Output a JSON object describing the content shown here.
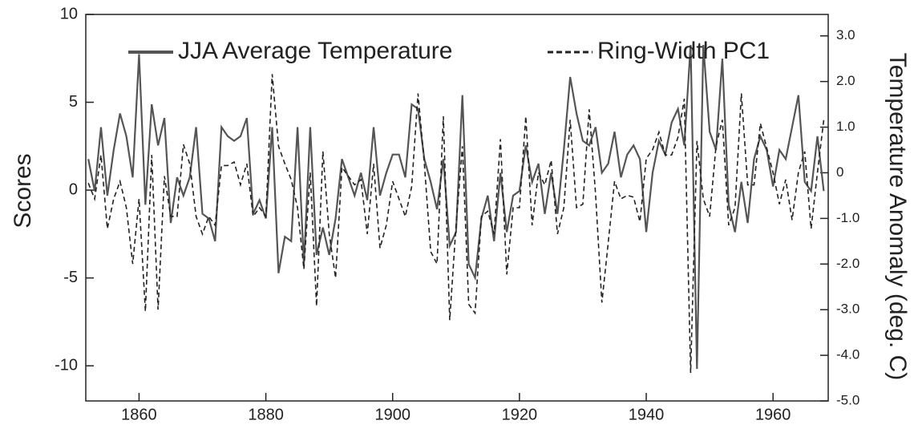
{
  "chart_data": {
    "type": "line",
    "y_label": "Scores",
    "y2_label": "Temperature Anomaly (deg. C)",
    "x": [
      1852,
      1853,
      1854,
      1855,
      1856,
      1857,
      1858,
      1859,
      1860,
      1861,
      1862,
      1863,
      1864,
      1865,
      1866,
      1867,
      1868,
      1869,
      1870,
      1871,
      1872,
      1873,
      1874,
      1875,
      1876,
      1877,
      1878,
      1879,
      1880,
      1881,
      1882,
      1883,
      1884,
      1885,
      1886,
      1887,
      1888,
      1889,
      1890,
      1891,
      1892,
      1893,
      1894,
      1895,
      1896,
      1897,
      1898,
      1899,
      1900,
      1901,
      1902,
      1903,
      1904,
      1905,
      1906,
      1907,
      1908,
      1909,
      1910,
      1911,
      1912,
      1913,
      1914,
      1915,
      1916,
      1917,
      1918,
      1919,
      1920,
      1921,
      1922,
      1923,
      1924,
      1925,
      1926,
      1927,
      1928,
      1929,
      1930,
      1931,
      1932,
      1933,
      1934,
      1935,
      1936,
      1937,
      1938,
      1939,
      1940,
      1941,
      1942,
      1943,
      1944,
      1945,
      1946,
      1947,
      1948,
      1949,
      1950,
      1951,
      1952,
      1953,
      1954,
      1955,
      1956,
      1957,
      1958,
      1959,
      1960,
      1961,
      1962,
      1963,
      1964,
      1965,
      1966,
      1967,
      1968
    ],
    "series": [
      {
        "name": "JJA Average Temperature",
        "color": "#555555",
        "dash": false,
        "axis": "y2",
        "values": [
          0.3,
          -0.4,
          1.0,
          -0.5,
          0.5,
          1.3,
          0.8,
          -0.1,
          2.6,
          -0.7,
          1.5,
          0.6,
          1.2,
          -1.1,
          -0.1,
          -0.5,
          -0.1,
          1.0,
          -0.9,
          -1.0,
          -1.5,
          1.0,
          0.8,
          0.7,
          0.8,
          1.2,
          -0.9,
          -0.6,
          -1.0,
          1.0,
          -2.2,
          -1.4,
          -1.5,
          1.0,
          -2.0,
          1.0,
          -1.8,
          -1.2,
          -1.8,
          -1.0,
          0.3,
          -0.1,
          -0.5,
          0.0,
          -0.6,
          1.0,
          -0.5,
          0.0,
          0.4,
          0.4,
          -0.1,
          1.5,
          1.4,
          0.3,
          -0.2,
          -0.8,
          0.3,
          -1.6,
          -1.3,
          1.7,
          -2.0,
          -2.3,
          -1.0,
          -0.5,
          -1.5,
          0.0,
          -1.3,
          -0.5,
          -0.4,
          0.6,
          -0.2,
          0.2,
          -0.9,
          0.0,
          -0.9,
          0.5,
          2.1,
          1.3,
          0.7,
          0.6,
          1.0,
          0.0,
          0.2,
          0.9,
          -0.1,
          0.4,
          0.6,
          0.3,
          -1.3,
          0.0,
          0.7,
          0.4,
          1.1,
          1.4,
          0.6,
          2.8,
          -4.3,
          2.8,
          0.9,
          0.5,
          2.5,
          -0.7,
          -1.3,
          -0.2,
          -1.1,
          0.3,
          0.8,
          0.5,
          -0.3,
          0.5,
          0.3,
          1.0,
          1.7,
          -0.2,
          -0.4,
          0.8,
          -0.4
        ]
      },
      {
        "name": "Ring-Width PC1",
        "color": "#222222",
        "dash": true,
        "values": [
          0.4,
          -0.5,
          2.0,
          -2.2,
          -0.5,
          0.5,
          -1.0,
          -4.2,
          -0.5,
          -6.9,
          2.0,
          -6.8,
          0.8,
          -1.5,
          -1.5,
          2.6,
          1.5,
          -1.5,
          -2.5,
          -1.5,
          -2.0,
          1.4,
          1.4,
          1.6,
          0.3,
          1.5,
          -1.5,
          -1.0,
          -1.5,
          6.6,
          2.5,
          1.5,
          0.6,
          -1.0,
          -4.5,
          1.0,
          -6.6,
          2.2,
          -2.5,
          -5.0,
          1.3,
          0.8,
          0.3,
          0.6,
          -2.5,
          1.5,
          -3.3,
          -2.0,
          0.5,
          -0.5,
          -1.5,
          0.2,
          5.5,
          1.5,
          -3.5,
          -4.2,
          4.2,
          -7.4,
          -2.0,
          2.5,
          -6.5,
          -7.0,
          -1.5,
          -1.2,
          -2.5,
          2.9,
          -4.8,
          -1.0,
          -1.0,
          4.2,
          -2.0,
          1.0,
          0.3,
          1.7,
          -2.5,
          -1.0,
          4.0,
          -1.0,
          -0.8,
          4.6,
          -0.2,
          -6.4,
          -3.0,
          0.5,
          -0.5,
          -0.3,
          -0.4,
          -1.8,
          1.8,
          2.3,
          3.3,
          2.0,
          2.0,
          3.0,
          5.2,
          -10.4,
          2.8,
          -0.5,
          -1.5,
          2.5,
          4.0,
          -2.0,
          -1.0,
          5.5,
          0.3,
          0.3,
          3.8,
          2.4,
          1.0,
          -0.8,
          0.6,
          -1.7,
          1.0,
          2.2,
          -2.2,
          1.0,
          4.0
        ]
      }
    ],
    "xlim": [
      1851.6,
      1968.7
    ],
    "xticks": [
      1860,
      1880,
      1900,
      1920,
      1940,
      1960
    ],
    "ylim": [
      -12,
      10
    ],
    "yticks": [
      -10,
      -5,
      0,
      5,
      10
    ],
    "y2lim": [
      -5,
      3.47
    ],
    "y2ticks": [
      {
        "value": -5,
        "label": "-5.0"
      },
      {
        "value": -4,
        "label": "-4.0"
      },
      {
        "value": -3,
        "label": "-3.0"
      },
      {
        "value": -2,
        "label": "-2.0"
      },
      {
        "value": -1,
        "label": "-1.0"
      },
      {
        "value": 0,
        "label": "0"
      },
      {
        "value": 1,
        "label": "1.0"
      },
      {
        "value": 2,
        "label": "2.0"
      },
      {
        "value": 3,
        "label": "3.0"
      }
    ],
    "legend": "top"
  }
}
